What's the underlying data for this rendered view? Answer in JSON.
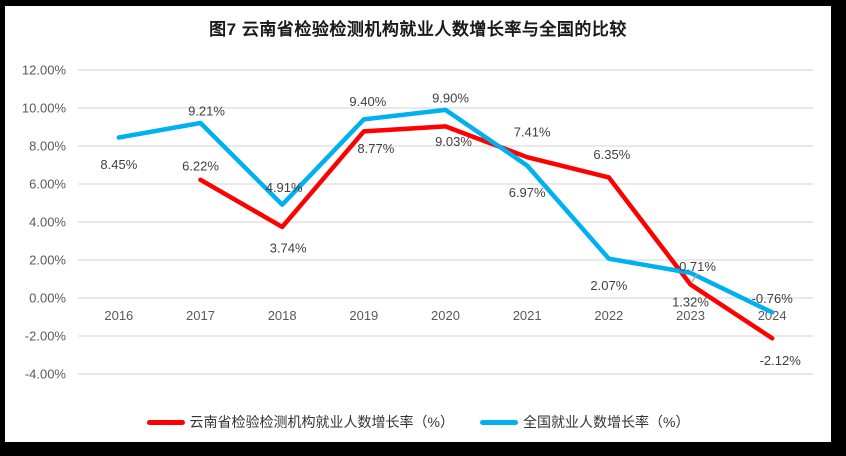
{
  "title": "图7  云南省检验检测机构就业人数增长率与全国的比较",
  "colors": {
    "yunnan": "#ff0000",
    "national": "#00b0f0",
    "grid": "#e2e2e2",
    "axis_text": "#595959",
    "label_text": "#3f3f3f",
    "leader": "#a6a6a6",
    "frame": "#000000",
    "background": "#ffffff"
  },
  "chart_data": {
    "type": "line",
    "title": "图7  云南省检验检测机构就业人数增长率与全国的比较",
    "categories": [
      "2016",
      "2017",
      "2018",
      "2019",
      "2020",
      "2021",
      "2022",
      "2023",
      "2024"
    ],
    "series": [
      {
        "name": "云南省检验检测机构就业人数增长率（%）",
        "color_key": "yunnan",
        "values": [
          null,
          6.22,
          3.74,
          8.77,
          9.03,
          7.41,
          6.35,
          0.71,
          -2.12
        ],
        "label_offsets": [
          null,
          {
            "dx": 0,
            "dy": -14
          },
          {
            "dx": 6,
            "dy": 21
          },
          {
            "dx": 12,
            "dy": 17
          },
          {
            "dx": 8,
            "dy": 15
          },
          {
            "dx": 5,
            "dy": -25
          },
          {
            "dx": 3,
            "dy": -23
          },
          {
            "dx": 7,
            "dy": -18,
            "leader": true
          },
          {
            "dx": 8,
            "dy": 22
          }
        ]
      },
      {
        "name": "全国就业人数增长率（%）",
        "color_key": "national",
        "values": [
          8.45,
          9.21,
          4.91,
          9.4,
          9.9,
          6.97,
          2.07,
          1.32,
          -0.76
        ],
        "label_offsets": [
          {
            "dx": 0,
            "dy": 27
          },
          {
            "dx": 6,
            "dy": -12
          },
          {
            "dx": 2,
            "dy": -17
          },
          {
            "dx": 4,
            "dy": -18
          },
          {
            "dx": 5,
            "dy": -12
          },
          {
            "dx": 0,
            "dy": 27
          },
          {
            "dx": 0,
            "dy": 27
          },
          {
            "dx": 0,
            "dy": 29
          },
          {
            "dx": 0,
            "dy": -14
          }
        ]
      }
    ],
    "y_axis": {
      "min": -4,
      "max": 12,
      "step": 2,
      "ticks": [
        "12.00%",
        "10.00%",
        "8.00%",
        "6.00%",
        "4.00%",
        "2.00%",
        "0.00%",
        "-2.00%",
        "-4.00%"
      ],
      "tick_format": "0.00%"
    },
    "grid": true,
    "legend_position": "bottom",
    "data_labels": true,
    "label_format": "0.00%"
  },
  "legend": {
    "items": [
      {
        "label": "云南省检验检测机构就业人数增长率（%）",
        "color_key": "yunnan"
      },
      {
        "label": "全国就业人数增长率（%）",
        "color_key": "national"
      }
    ]
  }
}
